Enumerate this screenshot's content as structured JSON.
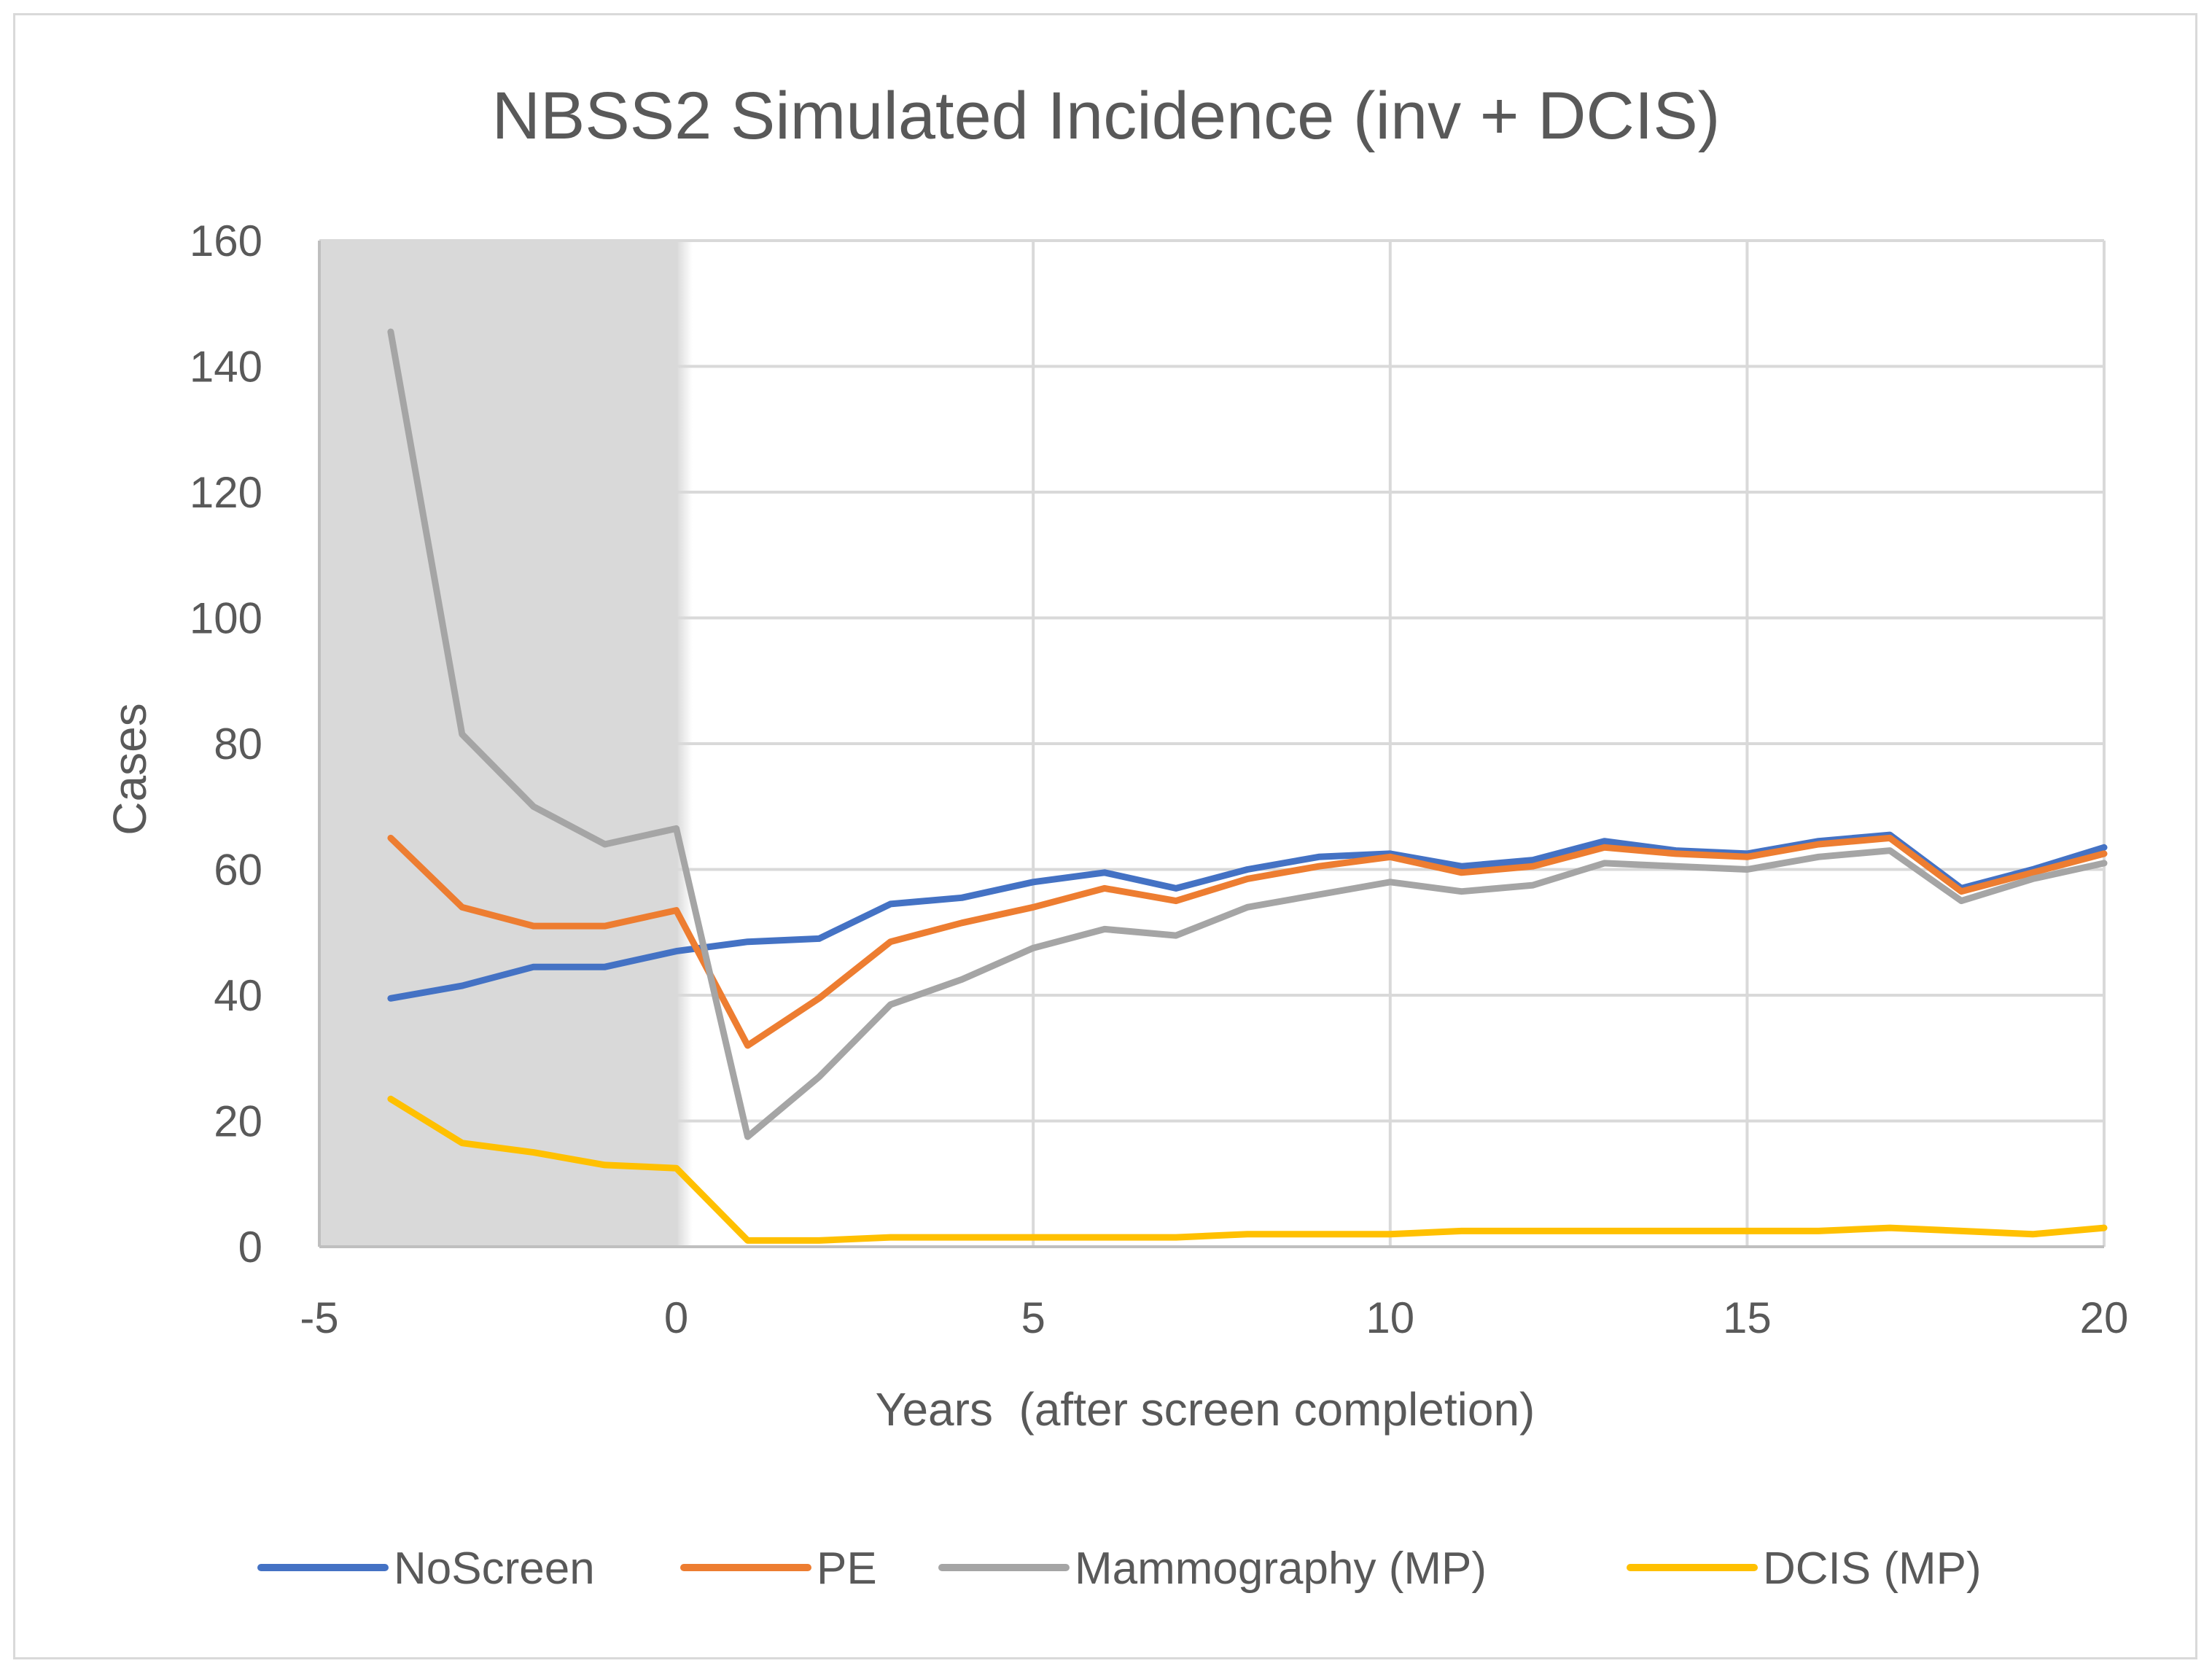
{
  "chart_data": {
    "type": "line",
    "title": "NBSS2 Simulated Incidence (inv + DCIS)",
    "xlabel": "Years  (after screen completion)",
    "ylabel": "Cases",
    "xlim": [
      -5,
      20
    ],
    "ylim": [
      0,
      160
    ],
    "xticks": [
      -5,
      0,
      5,
      10,
      15,
      20
    ],
    "yticks": [
      0,
      20,
      40,
      60,
      80,
      100,
      120,
      140,
      160
    ],
    "xtick_labels": [
      "-5",
      "0",
      "5",
      "10",
      "15",
      "20"
    ],
    "ytick_labels": [
      "0",
      "20",
      "40",
      "60",
      "80",
      "100",
      "120",
      "140",
      "160"
    ],
    "grid": true,
    "legend_position": "bottom",
    "shaded_region": {
      "x_from": -5,
      "x_to": 0,
      "color": "#d9d9d9"
    },
    "x": [
      -4,
      -3,
      -2,
      -1,
      0,
      1,
      2,
      3,
      4,
      5,
      6,
      7,
      8,
      9,
      10,
      11,
      12,
      13,
      14,
      15,
      16,
      17,
      18,
      19,
      20
    ],
    "series": [
      {
        "name": "NoScreen",
        "color": "#4472c4",
        "values": [
          39.5,
          41.5,
          44.5,
          44.5,
          47,
          48.5,
          49,
          54.5,
          55.5,
          58,
          59.5,
          57,
          60,
          62,
          62.5,
          60.5,
          61.5,
          64.5,
          63,
          62.5,
          64.5,
          65.5,
          57,
          60,
          63.5
        ]
      },
      {
        "name": "PE",
        "color": "#ed7d31",
        "values": [
          65,
          54,
          51,
          51,
          53.5,
          32,
          39.5,
          48.5,
          51.5,
          54,
          57,
          55,
          58.5,
          60.5,
          62,
          59.5,
          60.5,
          63.5,
          62.5,
          62,
          64,
          65,
          56.5,
          59.5,
          62.5
        ]
      },
      {
        "name": "Mammography (MP)",
        "color": "#a5a5a5",
        "values": [
          145.5,
          81.5,
          70,
          64,
          66.5,
          17.5,
          27,
          38.5,
          42.5,
          47.5,
          50.5,
          49.5,
          54,
          56,
          58,
          56.5,
          57.5,
          61,
          60.5,
          60,
          62,
          63,
          55,
          58.5,
          61
        ]
      },
      {
        "name": "DCIS (MP)",
        "color": "#ffc000",
        "values": [
          23.5,
          16.5,
          15,
          13,
          12.5,
          1,
          1,
          1.5,
          1.5,
          1.5,
          1.5,
          1.5,
          2,
          2,
          2,
          2.5,
          2.5,
          2.5,
          2.5,
          2.5,
          2.5,
          3,
          2.5,
          2,
          3
        ]
      }
    ]
  }
}
